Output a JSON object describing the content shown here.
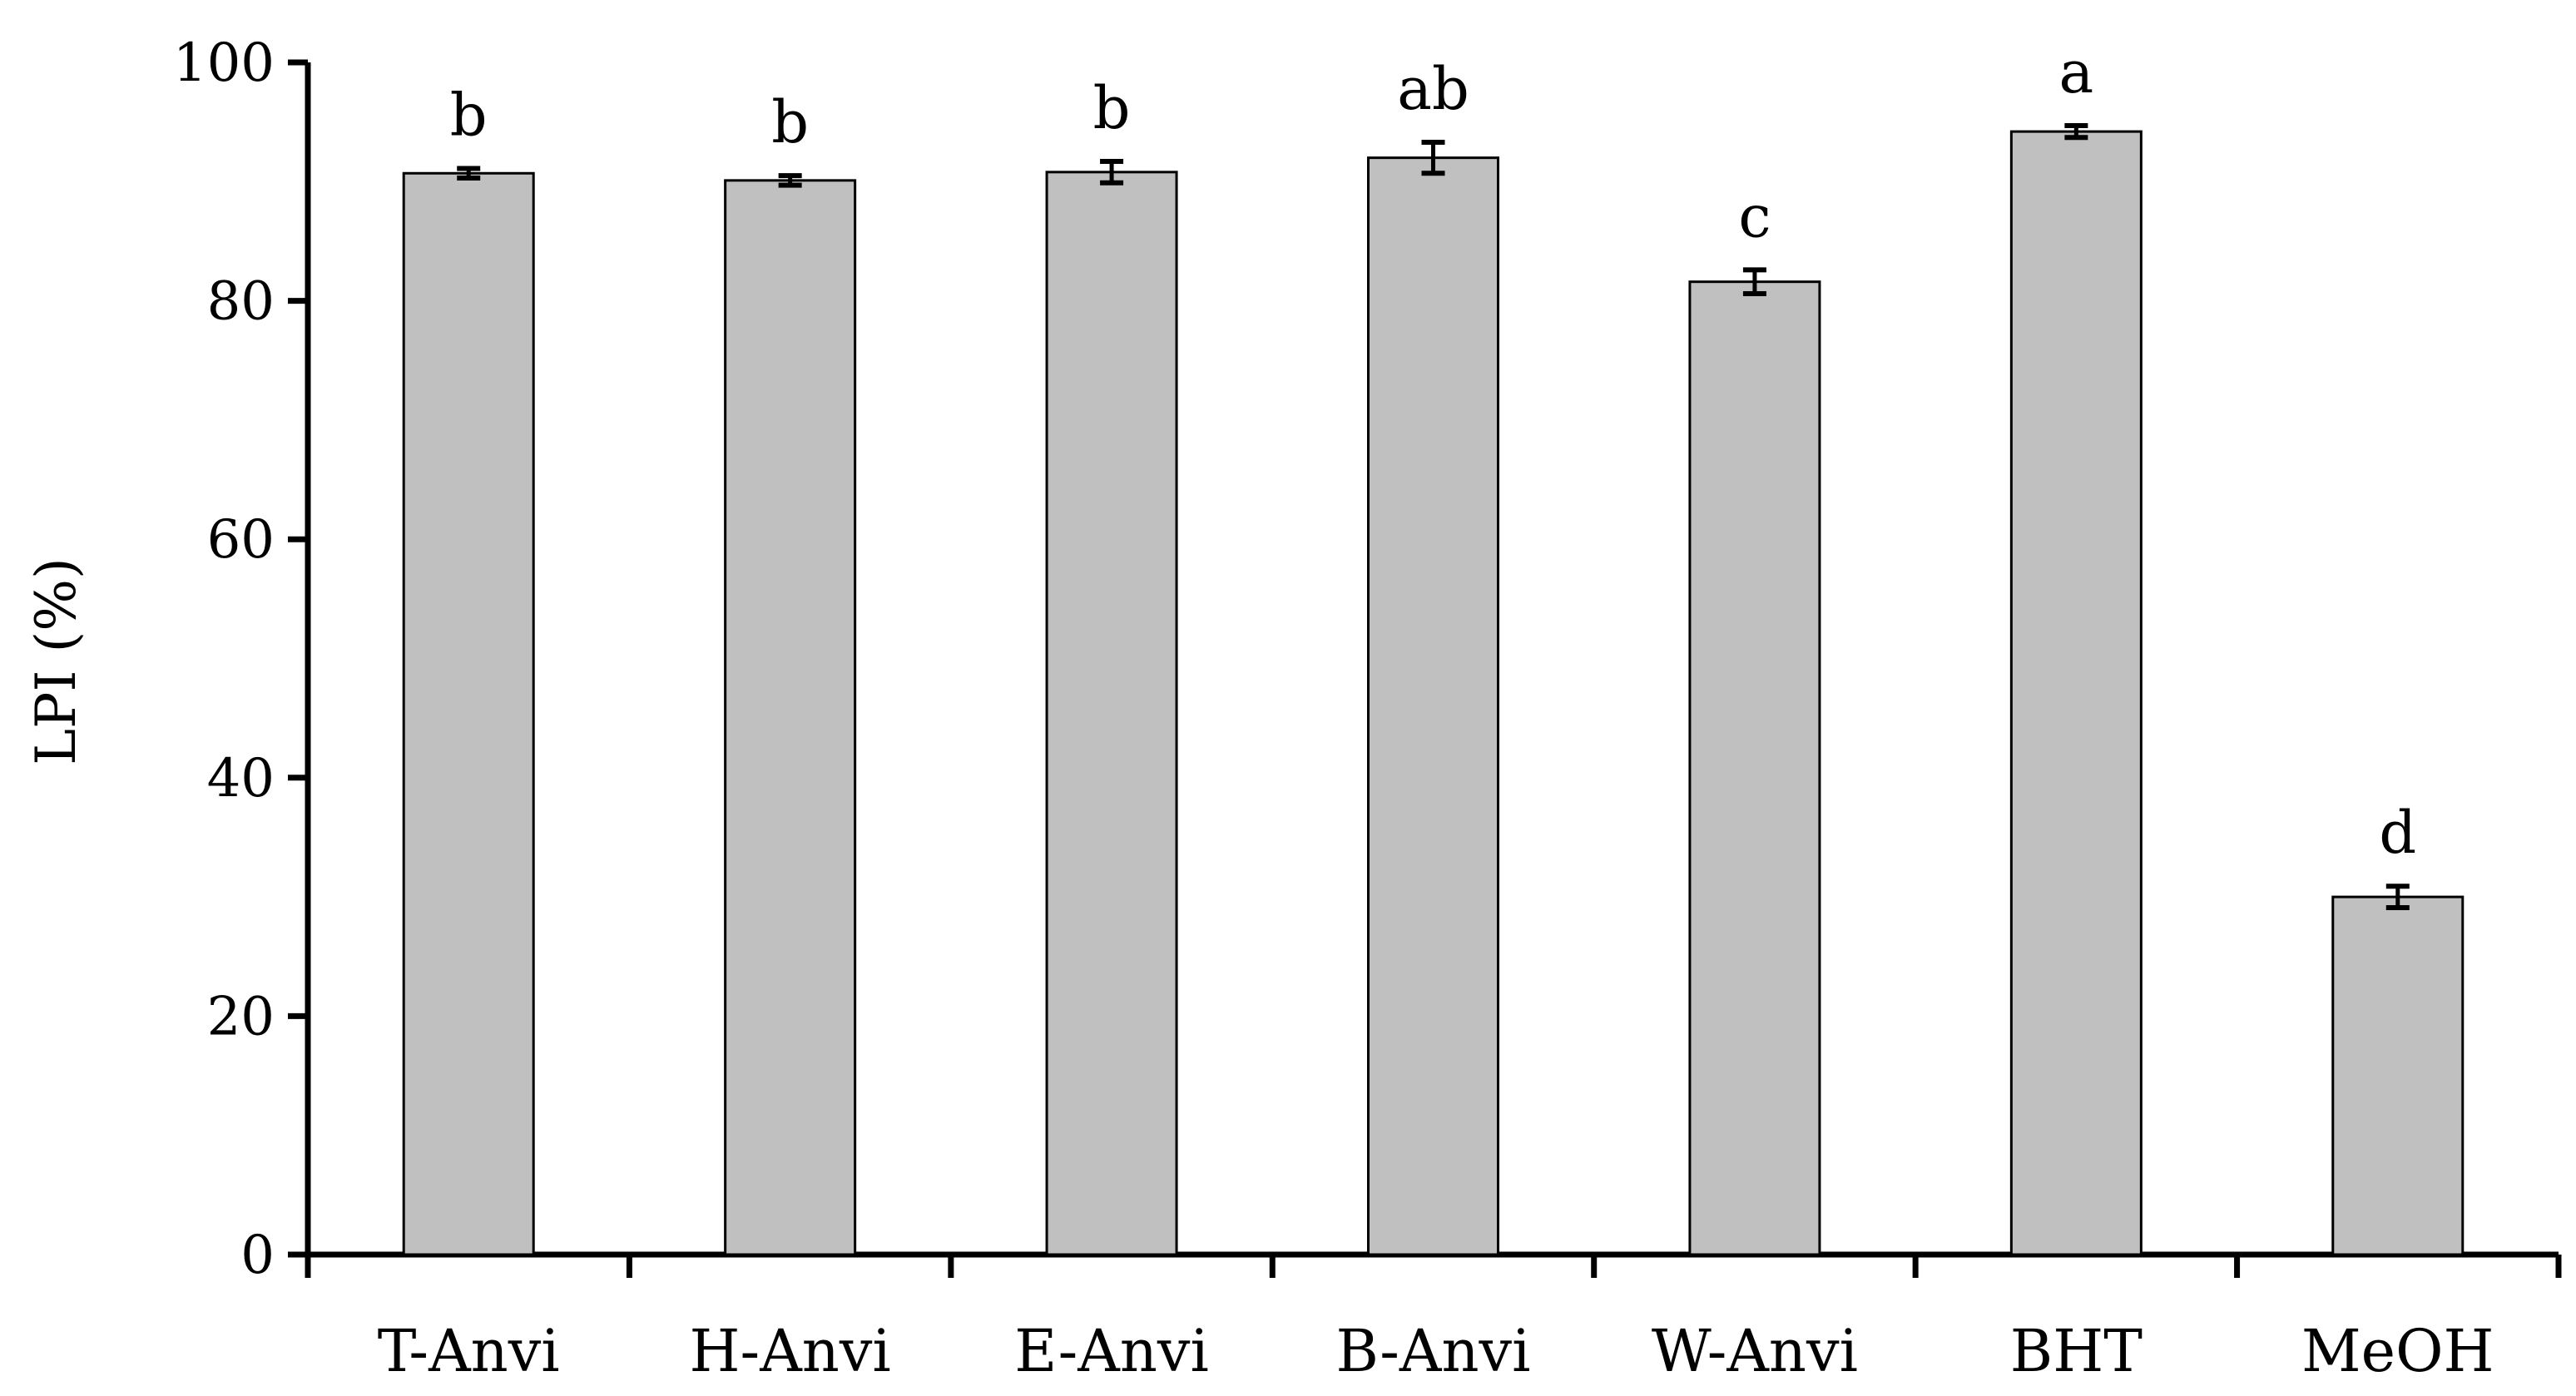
{
  "chart_data": {
    "type": "bar",
    "title": "",
    "xlabel": "",
    "ylabel": "LPI (%)",
    "ylim": [
      0,
      100
    ],
    "yticks": [
      0,
      20,
      40,
      60,
      80,
      100
    ],
    "grid": false,
    "categories": [
      "T-Anvi",
      "H-Anvi",
      "E-Anvi",
      "B-Anvi",
      "W-Anvi",
      "BHT",
      "MeOH"
    ],
    "values": [
      90.7,
      90.1,
      90.8,
      92.0,
      81.6,
      94.2,
      30.0
    ],
    "errors": [
      0.4,
      0.4,
      0.9,
      1.3,
      1.0,
      0.5,
      0.9
    ],
    "significance_labels": [
      "b",
      "b",
      "b",
      "ab",
      "c",
      "a",
      "d"
    ],
    "colors": {
      "bar_fill": "#c0c0c0",
      "bar_stroke": "#000000",
      "axis": "#000000"
    }
  }
}
